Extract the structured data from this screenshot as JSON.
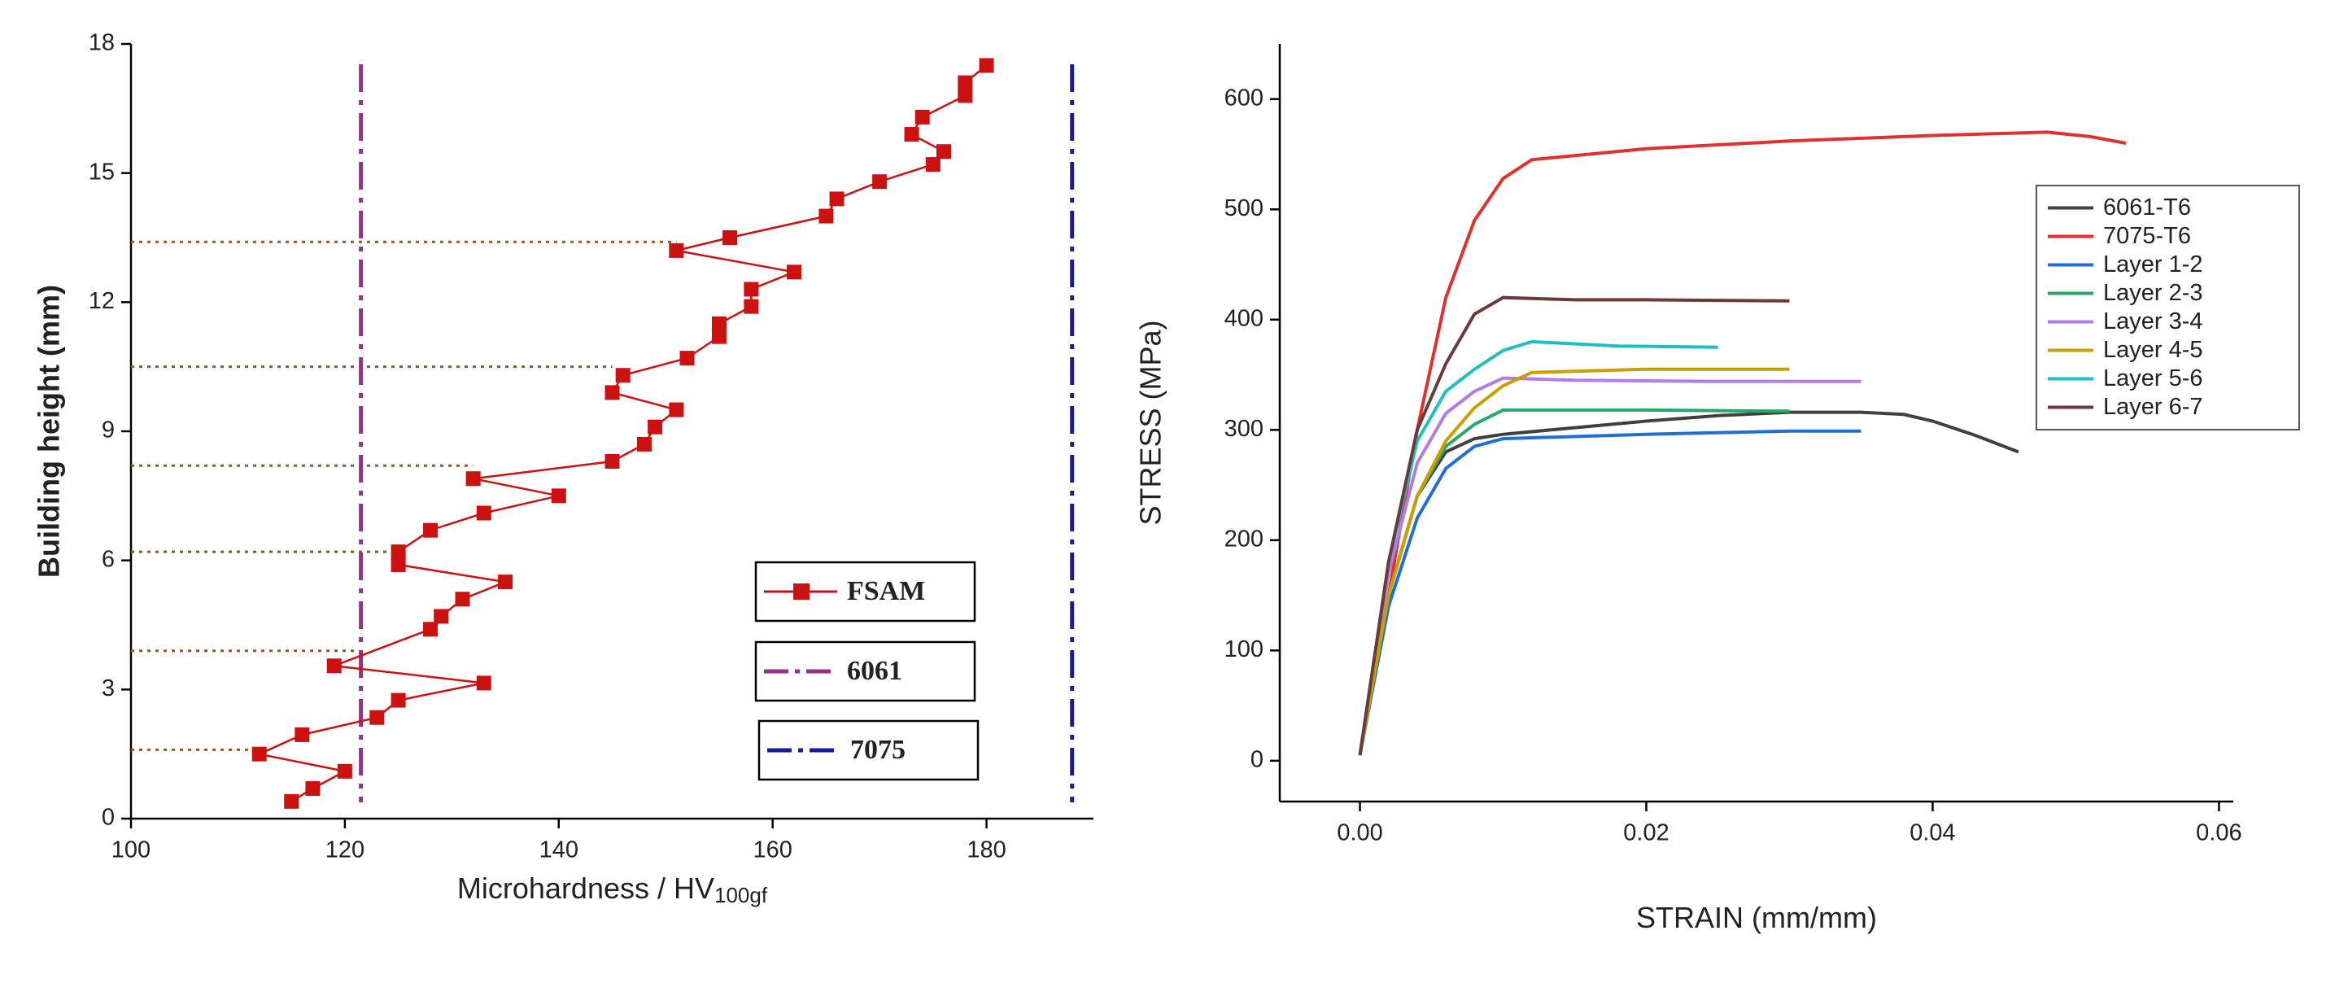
{
  "chart_data": [
    {
      "type": "line",
      "xlabel": "Microhardness / HV",
      "xlabel_subscript": "100gf",
      "ylabel": "Building height (mm)",
      "xlim": [
        100,
        190
      ],
      "xticks": [
        100,
        120,
        140,
        160,
        180
      ],
      "ylim": [
        0,
        18
      ],
      "yticks": [
        0,
        3,
        6,
        9,
        12,
        15,
        18
      ],
      "marker": "square",
      "series": [
        {
          "name": "FSAM",
          "color": "#cc1111",
          "x": [
            115,
            117,
            120,
            112,
            116,
            123,
            125,
            133,
            119,
            128,
            129,
            131,
            135,
            125,
            125,
            128,
            133,
            140,
            132,
            145,
            148,
            149,
            151,
            145,
            146,
            152,
            155,
            155,
            158,
            158,
            162,
            151,
            156,
            165,
            166,
            170,
            175,
            176,
            173,
            174,
            178,
            178,
            180
          ],
          "values": [
            0.4,
            0.7,
            1.1,
            1.5,
            1.95,
            2.35,
            2.75,
            3.15,
            3.55,
            4.4,
            4.7,
            5.1,
            5.5,
            5.9,
            6.2,
            6.7,
            7.1,
            7.5,
            7.9,
            8.3,
            8.7,
            9.1,
            9.5,
            9.9,
            10.3,
            10.7,
            11.2,
            11.5,
            11.9,
            12.3,
            12.7,
            13.2,
            13.5,
            14.0,
            14.4,
            14.8,
            15.2,
            15.5,
            15.9,
            16.3,
            16.8,
            17.1,
            17.5
          ]
        }
      ],
      "vlines": [
        {
          "name": "6061",
          "color": "#9b2d8f",
          "value": 121.5
        },
        {
          "name": "7075",
          "color": "#1a1a9c",
          "value": 188
        }
      ],
      "hlines": [
        {
          "y": 1.6,
          "x_end": 112
        },
        {
          "y": 3.9,
          "x_end": 121
        },
        {
          "y": 6.2,
          "x_end": 125
        },
        {
          "y": 8.2,
          "x_end": 132
        },
        {
          "y": 10.5,
          "x_end": 145
        },
        {
          "y": 13.4,
          "x_end": 151
        }
      ]
    },
    {
      "type": "line",
      "xlabel": "STRAIN (mm/mm)",
      "ylabel": "STRESS (MPa)",
      "xlim": [
        -0.0056,
        0.061
      ],
      "xticks": [
        {
          "value": 0,
          "label": "0.00"
        },
        0.02,
        0.04,
        0.06
      ],
      "ylim": [
        -37,
        650
      ],
      "yticks": [
        0,
        100,
        200,
        300,
        400,
        500,
        600
      ],
      "legend": "right",
      "series": [
        {
          "name": "6061-T6",
          "color": "#404040",
          "x": [
            0,
            0.002,
            0.004,
            0.006,
            0.008,
            0.01,
            0.015,
            0.02,
            0.025,
            0.03,
            0.035,
            0.038,
            0.04,
            0.043,
            0.046
          ],
          "values": [
            5,
            150,
            240,
            280,
            292,
            296,
            302,
            308,
            313,
            316,
            316,
            314,
            308,
            295,
            280
          ]
        },
        {
          "name": "7075-T6",
          "color": "#e03030",
          "x": [
            0,
            0.002,
            0.004,
            0.006,
            0.008,
            0.01,
            0.012,
            0.02,
            0.03,
            0.04,
            0.048,
            0.051,
            0.0535
          ],
          "values": [
            5,
            150,
            300,
            420,
            490,
            528,
            545,
            555,
            562,
            567,
            570,
            566,
            560
          ]
        },
        {
          "name": "Layer 1-2",
          "color": "#1f6fd6",
          "x": [
            0,
            0.002,
            0.004,
            0.006,
            0.008,
            0.01,
            0.02,
            0.03,
            0.035
          ],
          "values": [
            5,
            140,
            220,
            265,
            285,
            292,
            296,
            299,
            299
          ]
        },
        {
          "name": "Layer 2-3",
          "color": "#2aa86a",
          "x": [
            0,
            0.002,
            0.004,
            0.006,
            0.008,
            0.01,
            0.015,
            0.02,
            0.03
          ],
          "values": [
            5,
            150,
            240,
            285,
            305,
            318,
            318,
            318,
            317
          ]
        },
        {
          "name": "Layer 3-4",
          "color": "#b07ce8",
          "x": [
            0,
            0.002,
            0.004,
            0.006,
            0.008,
            0.01,
            0.015,
            0.025,
            0.035
          ],
          "values": [
            5,
            170,
            270,
            315,
            335,
            347,
            345,
            344,
            344
          ]
        },
        {
          "name": "Layer 4-5",
          "color": "#c9a000",
          "x": [
            0,
            0.002,
            0.004,
            0.006,
            0.008,
            0.01,
            0.012,
            0.02,
            0.03
          ],
          "values": [
            5,
            150,
            240,
            290,
            320,
            340,
            352,
            355,
            355
          ]
        },
        {
          "name": "Layer 5-6",
          "color": "#20c0c0",
          "x": [
            0,
            0.002,
            0.004,
            0.006,
            0.008,
            0.01,
            0.012,
            0.018,
            0.025
          ],
          "values": [
            5,
            180,
            290,
            335,
            355,
            372,
            380,
            376,
            375
          ]
        },
        {
          "name": "Layer 6-7",
          "color": "#6b3a3a",
          "x": [
            0,
            0.002,
            0.004,
            0.006,
            0.008,
            0.01,
            0.015,
            0.02,
            0.03
          ],
          "values": [
            5,
            180,
            300,
            360,
            405,
            420,
            418,
            418,
            417
          ]
        }
      ]
    }
  ]
}
